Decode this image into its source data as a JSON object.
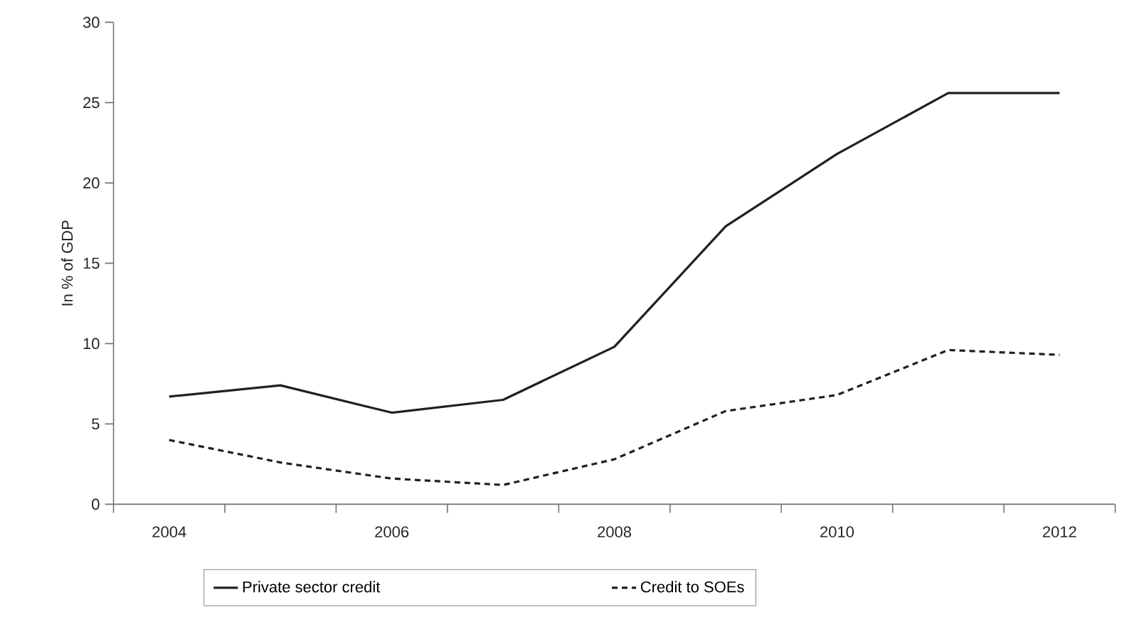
{
  "chart_data": {
    "type": "line",
    "ylabel": "In % of GDP",
    "categories": [
      "2004",
      null,
      "2006",
      null,
      "2008",
      null,
      "2010",
      null,
      "2012"
    ],
    "series": [
      {
        "name": "Private sector credit",
        "color": "#231f20",
        "line_style": "solid",
        "values": [
          6.7,
          7.4,
          5.7,
          6.5,
          9.8,
          17.3,
          21.8,
          25.6,
          25.6
        ]
      },
      {
        "name": "Credit to SOEs",
        "color": "#231f20",
        "line_style": "dashed",
        "values": [
          4.0,
          2.6,
          1.6,
          1.2,
          2.8,
          5.8,
          6.8,
          9.6,
          9.3
        ]
      }
    ],
    "ylim": [
      0,
      30
    ],
    "yticks": [
      0,
      5,
      10,
      15,
      20,
      25,
      30
    ],
    "grid": false,
    "legend": "bottom",
    "marker": "none"
  }
}
